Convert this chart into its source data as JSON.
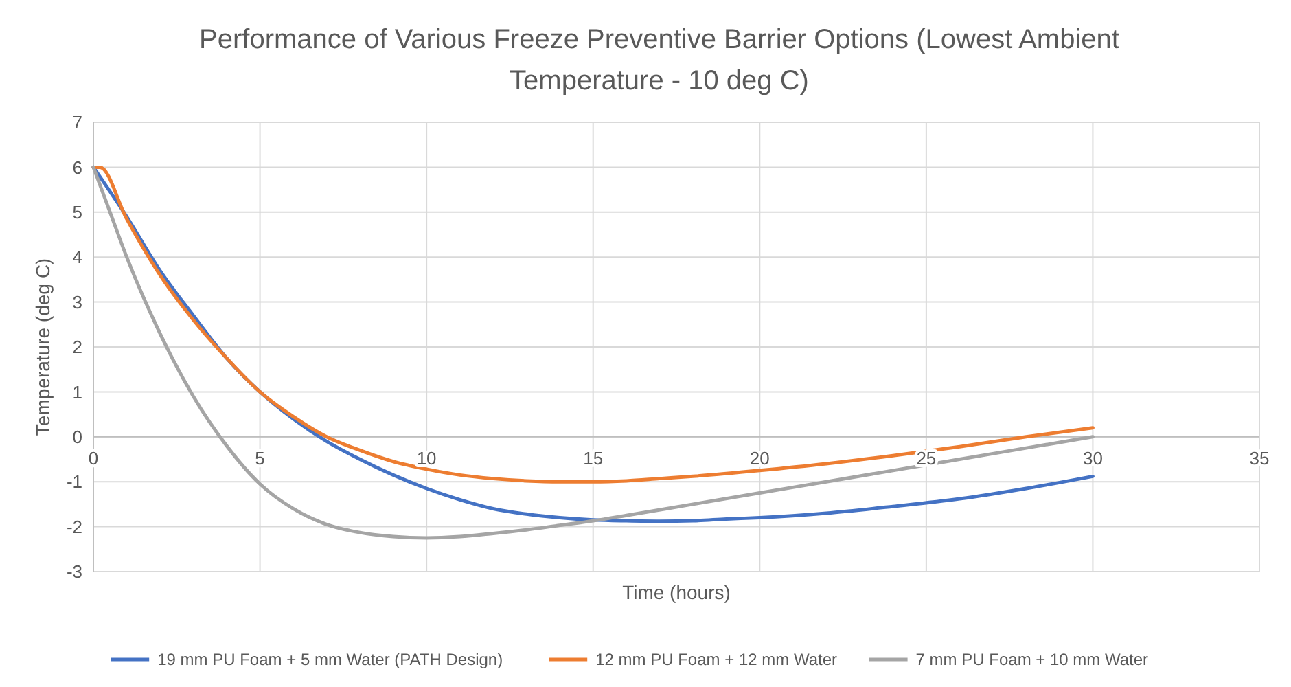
{
  "chart_data": {
    "type": "line",
    "title": "Performance of Various Freeze Preventive Barrier Options (Lowest Ambient Temperature - 10 deg C)",
    "xlabel": "Time (hours)",
    "ylabel": "Temperature (deg C)",
    "xlim": [
      0,
      35
    ],
    "xticks": [
      0,
      5,
      10,
      15,
      20,
      25,
      30,
      35
    ],
    "ylim": [
      -3,
      7
    ],
    "yticks": [
      -3,
      -2,
      -1,
      0,
      1,
      2,
      3,
      4,
      5,
      6,
      7
    ],
    "grid": true,
    "legend": "bottom",
    "marker": "none",
    "line_style": "solid",
    "series": [
      {
        "name": "19 mm PU Foam + 5 mm Water (PATH Design)",
        "color": "#4472c4",
        "x": [
          0,
          1,
          2,
          3,
          4,
          5,
          6,
          7,
          8,
          9,
          10,
          11,
          12,
          13,
          14,
          15,
          16,
          17,
          18,
          19,
          20,
          22,
          24,
          26,
          28,
          30
        ],
        "values": [
          6,
          4.9,
          3.7,
          2.7,
          1.75,
          1.0,
          0.4,
          -0.1,
          -0.5,
          -0.85,
          -1.15,
          -1.4,
          -1.6,
          -1.72,
          -1.8,
          -1.85,
          -1.87,
          -1.88,
          -1.87,
          -1.83,
          -1.8,
          -1.7,
          -1.55,
          -1.38,
          -1.15,
          -0.88
        ]
      },
      {
        "name": "12 mm PU Foam + 12 mm Water",
        "color": "#ed7d31",
        "x": [
          0,
          0.2,
          1,
          2,
          3,
          4,
          5,
          6,
          7,
          8,
          9,
          10,
          11,
          12,
          13,
          14,
          15,
          16,
          17,
          18,
          20,
          22,
          24,
          26,
          28,
          30
        ],
        "values": [
          6,
          6,
          4.85,
          3.6,
          2.6,
          1.75,
          1.0,
          0.45,
          0.0,
          -0.3,
          -0.55,
          -0.72,
          -0.85,
          -0.93,
          -0.98,
          -1.0,
          -1.0,
          -0.98,
          -0.93,
          -0.88,
          -0.75,
          -0.6,
          -0.42,
          -0.22,
          0.0,
          0.2
        ]
      },
      {
        "name": "7 mm PU Foam + 10 mm Water",
        "color": "#a5a5a5",
        "x": [
          0,
          0.5,
          1,
          2,
          3,
          4,
          5,
          6,
          7,
          8,
          9,
          10,
          11,
          12,
          13,
          14,
          15,
          16,
          18,
          20,
          22,
          24,
          26,
          28,
          30
        ],
        "values": [
          6,
          5.0,
          4.0,
          2.3,
          0.9,
          -0.2,
          -1.05,
          -1.6,
          -1.95,
          -2.13,
          -2.22,
          -2.25,
          -2.22,
          -2.15,
          -2.07,
          -1.97,
          -1.87,
          -1.75,
          -1.5,
          -1.25,
          -1.0,
          -0.75,
          -0.5,
          -0.25,
          0.0
        ]
      }
    ]
  }
}
